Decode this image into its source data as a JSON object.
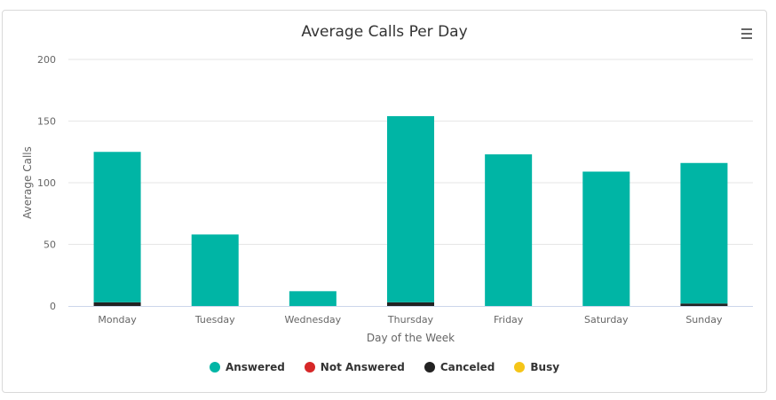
{
  "chart_data": {
    "type": "bar",
    "stacked": true,
    "title": "Average Calls Per Day",
    "xlabel": "Day of the Week",
    "ylabel": "Average Calls",
    "ylim": [
      0,
      200
    ],
    "yticks": [
      0,
      50,
      100,
      150,
      200
    ],
    "grid": true,
    "legend_position": "bottom",
    "categories": [
      "Monday",
      "Tuesday",
      "Wednesday",
      "Thursday",
      "Friday",
      "Saturday",
      "Sunday"
    ],
    "series": [
      {
        "name": "Canceled",
        "color": "#222222",
        "values": [
          3,
          0,
          0,
          3,
          0,
          0,
          2
        ]
      },
      {
        "name": "Not Answered",
        "color": "#d62728",
        "values": [
          0,
          0,
          0,
          0,
          0,
          0,
          0
        ]
      },
      {
        "name": "Busy",
        "color": "#f5c518",
        "values": [
          0,
          0,
          0,
          0,
          0,
          0,
          0
        ]
      },
      {
        "name": "Answered",
        "color": "#00b5a5",
        "values": [
          122,
          58,
          12,
          151,
          123,
          109,
          114
        ]
      }
    ],
    "legend": [
      {
        "name": "Answered",
        "color": "#00b5a5"
      },
      {
        "name": "Not Answered",
        "color": "#d62728"
      },
      {
        "name": "Canceled",
        "color": "#222222"
      },
      {
        "name": "Busy",
        "color": "#f5c518"
      }
    ]
  },
  "menu": {
    "icon": "hamburger-menu-icon"
  }
}
